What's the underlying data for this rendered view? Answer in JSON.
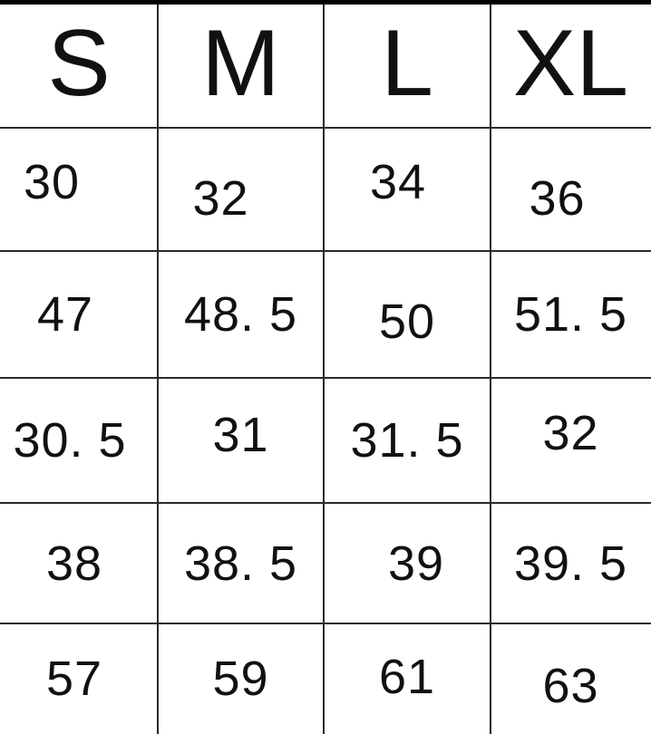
{
  "headers": [
    "S",
    "M",
    "L",
    "XL"
  ],
  "rows": [
    [
      "30",
      "32",
      "34",
      "36"
    ],
    [
      "47",
      "48. 5",
      "50",
      "51. 5"
    ],
    [
      "30. 5",
      "31",
      "31. 5",
      "32"
    ],
    [
      "38",
      "38. 5",
      "39",
      "39. 5"
    ],
    [
      "57",
      "59",
      "61",
      "63"
    ]
  ]
}
